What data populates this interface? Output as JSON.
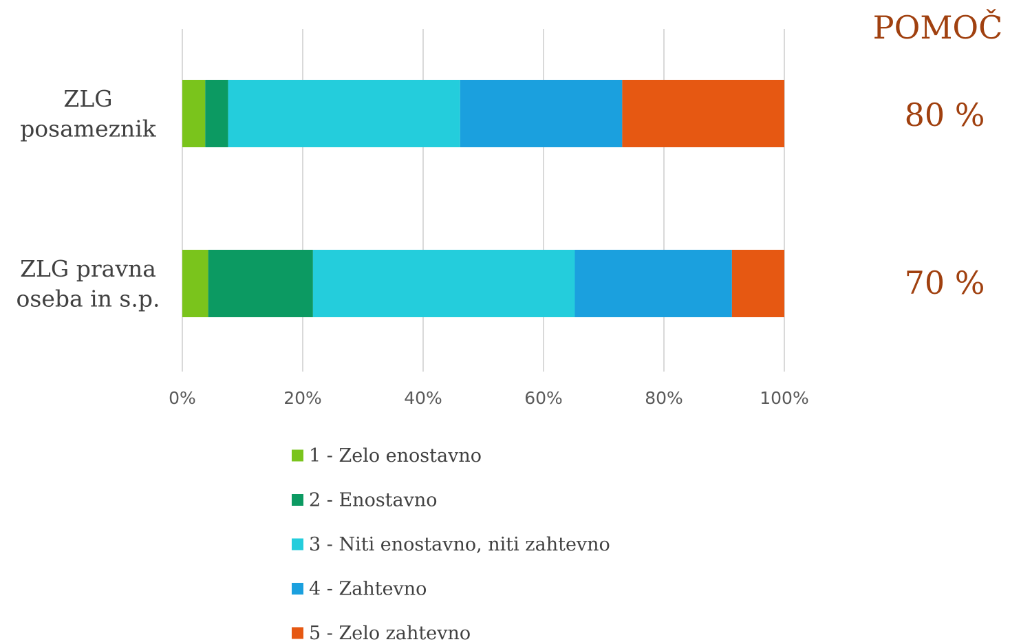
{
  "chart_data": {
    "type": "bar",
    "orientation": "horizontal",
    "stacked": "percent",
    "categories": [
      "ZLG posameznik",
      "ZLG pravna oseba in s.p."
    ],
    "category_lines": [
      [
        "ZLG",
        "posameznik"
      ],
      [
        "ZLG pravna",
        "oseba in s.p."
      ]
    ],
    "series": [
      {
        "name": "1 - Zelo enostavno",
        "color": "#7AC41C",
        "values": [
          3.8,
          4.3
        ]
      },
      {
        "name": "2 - Enostavno",
        "color": "#0C9A62",
        "values": [
          3.8,
          17.4
        ]
      },
      {
        "name": "3 - Niti enostavno, niti zahtevno",
        "color": "#24CDDC",
        "values": [
          38.5,
          43.5
        ]
      },
      {
        "name": "4 - Zahtevno",
        "color": "#1BA0DE",
        "values": [
          26.9,
          26.1
        ]
      },
      {
        "name": "5 - Zelo zahtevno",
        "color": "#E65812",
        "values": [
          26.9,
          8.7
        ]
      }
    ],
    "xlim": [
      0,
      100
    ],
    "x_ticks": [
      "0%",
      "20%",
      "40%",
      "60%",
      "80%",
      "100%"
    ],
    "grid": true,
    "legend_position": "bottom"
  },
  "side_panel": {
    "title": "POMOČ",
    "values": [
      "80 %",
      "70 %"
    ],
    "color": "#A0400F"
  }
}
